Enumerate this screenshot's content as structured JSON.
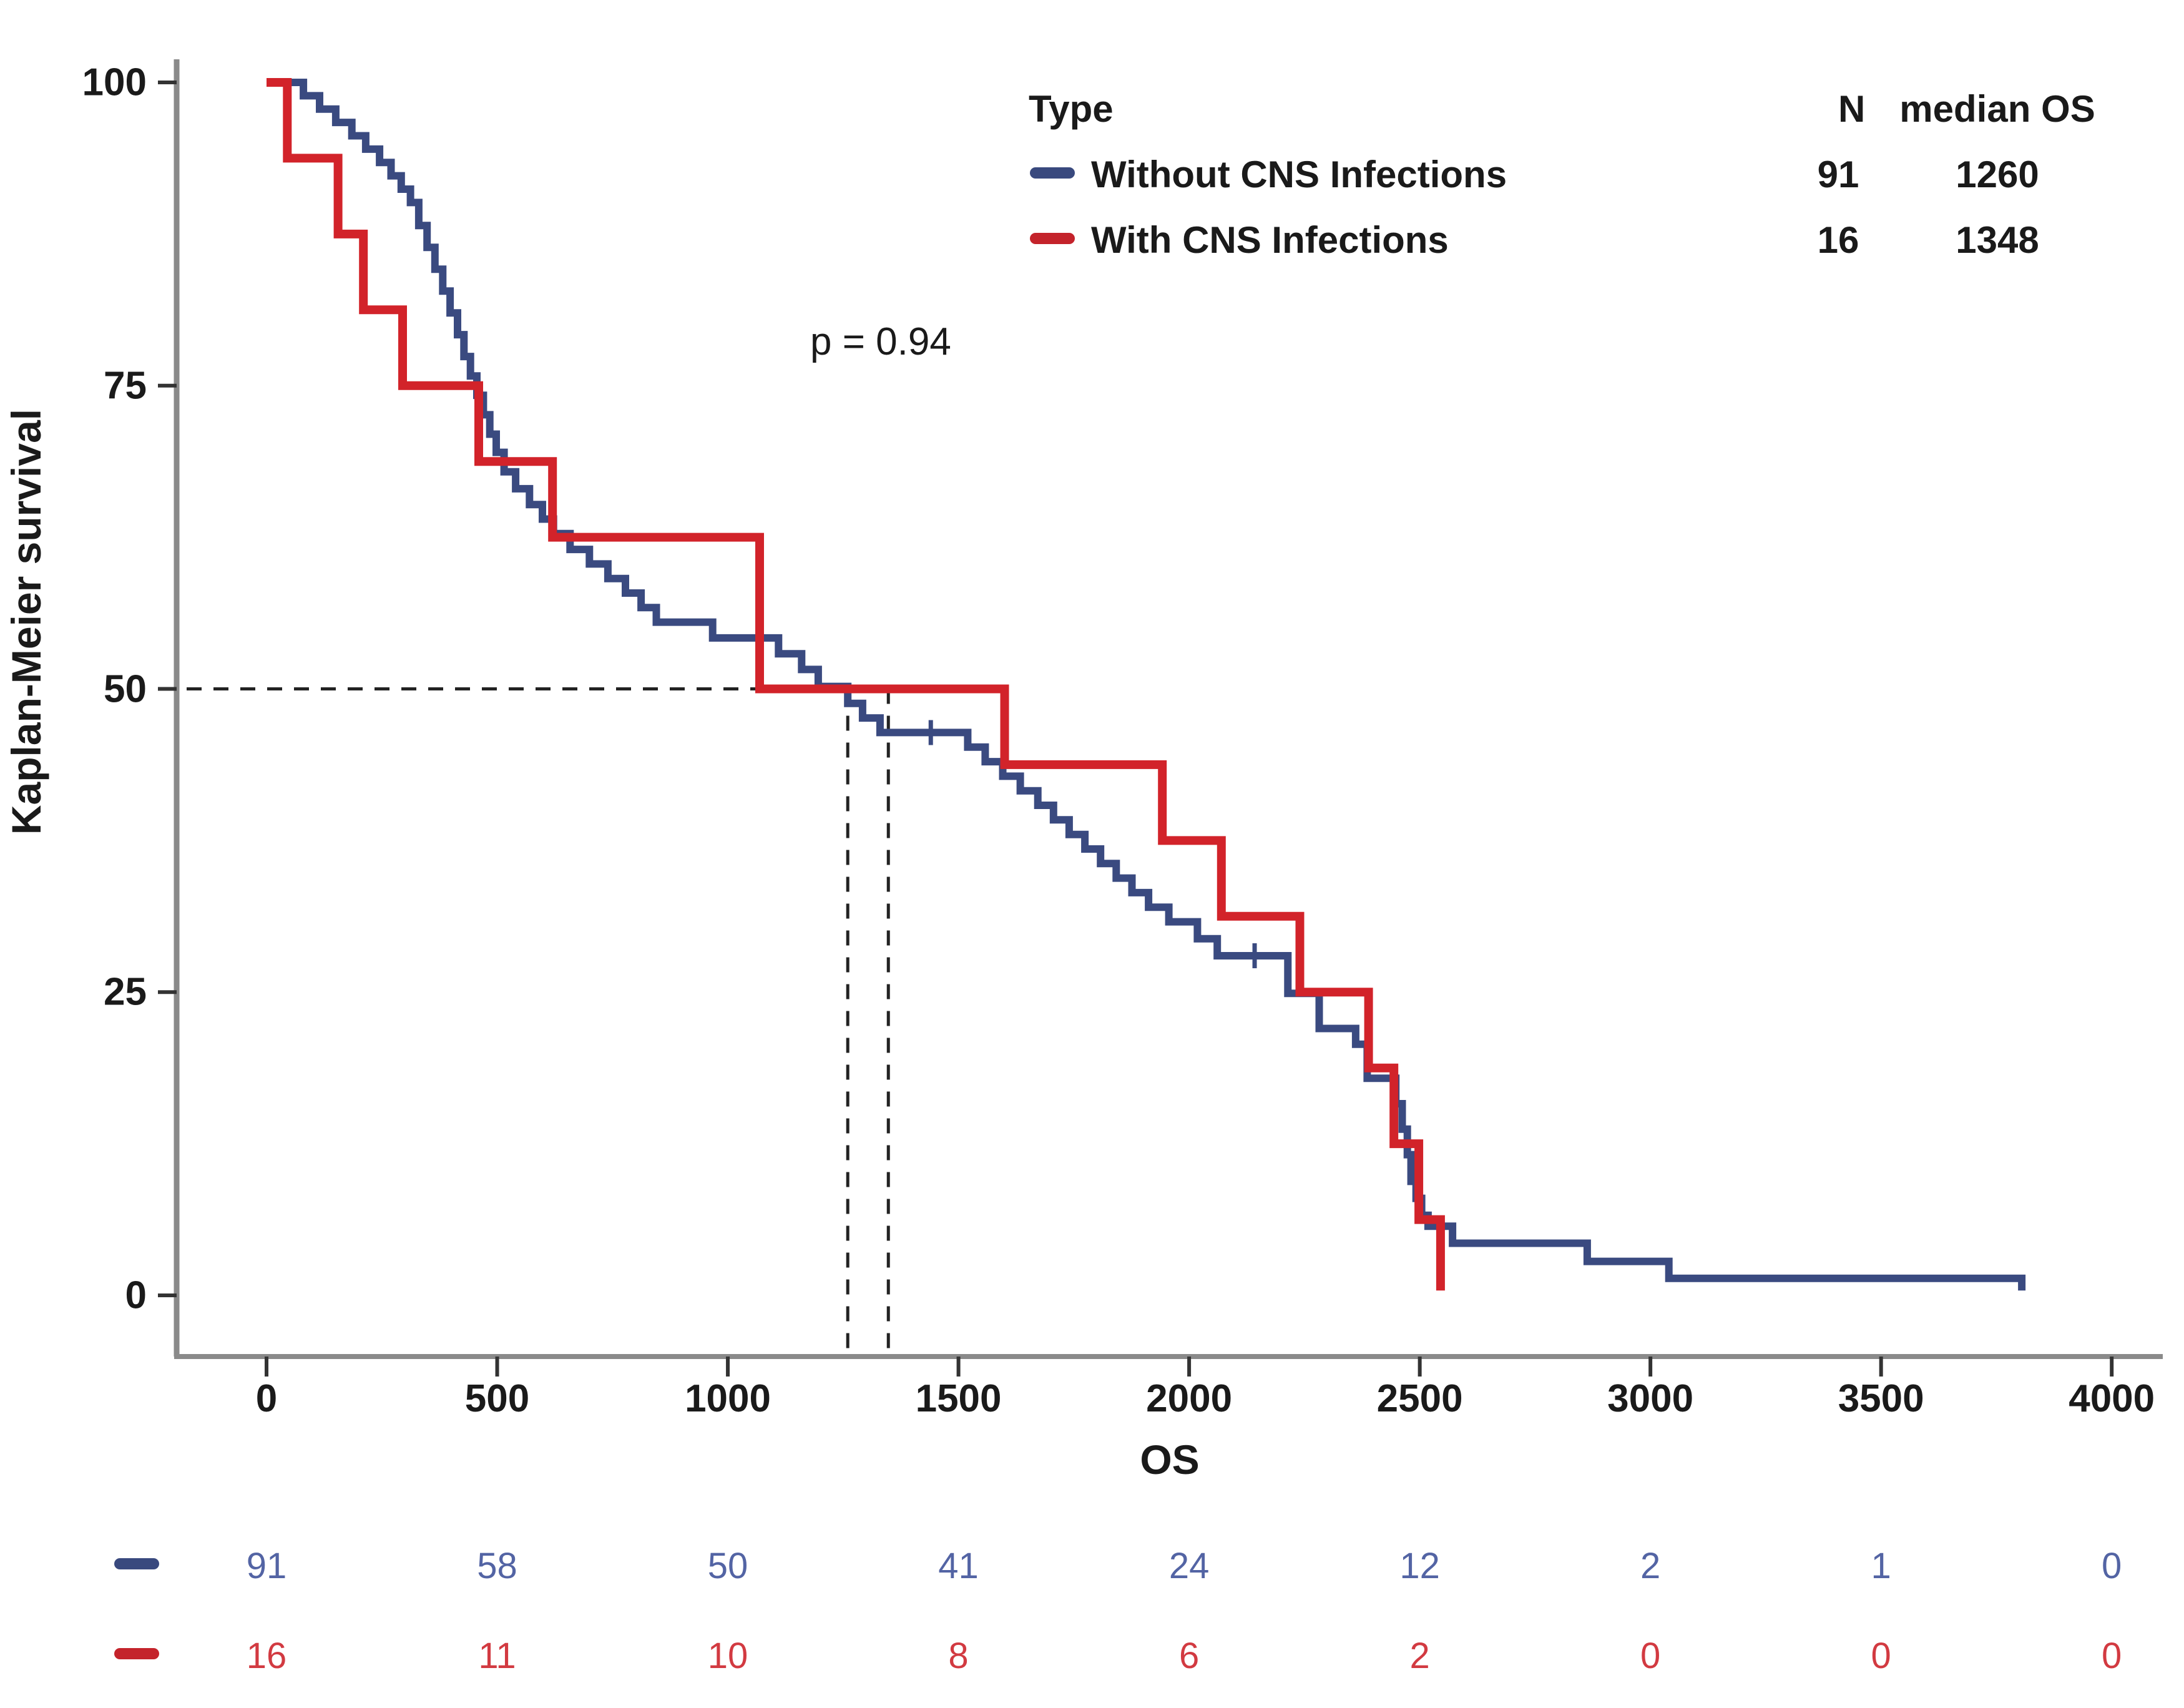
{
  "legend": {
    "title": "Type",
    "col_n_header": "N",
    "col_median_header": "median OS",
    "entries": [
      {
        "label": "Without CNS Infections",
        "n": "91",
        "median": "1260",
        "color_key": "blue"
      },
      {
        "label": "With CNS Infections",
        "n": "16",
        "median": "1348",
        "color_key": "red"
      }
    ]
  },
  "annotations": {
    "p_value": "p = 0.94"
  },
  "axes": {
    "y_title": "Kaplan-Meier survival",
    "x_title": "OS",
    "y_ticks": [
      "100",
      "75",
      "50",
      "25",
      "0"
    ],
    "y_tick_values": [
      100,
      75,
      50,
      25,
      0
    ],
    "x_ticks": [
      "0",
      "500",
      "1000",
      "1500",
      "2000",
      "2500",
      "3000",
      "3500",
      "4000"
    ],
    "x_tick_values": [
      0,
      500,
      1000,
      1500,
      2000,
      2500,
      3000,
      3500,
      4000
    ]
  },
  "risk_table": {
    "rows": [
      {
        "color_key": "blue",
        "counts": [
          "91",
          "58",
          "50",
          "41",
          "24",
          "12",
          "2",
          "1",
          "0"
        ]
      },
      {
        "color_key": "red",
        "counts": [
          "16",
          "11",
          "10",
          "8",
          "6",
          "2",
          "0",
          "0",
          "0"
        ]
      }
    ]
  },
  "colors": {
    "blue": "#3A4A80",
    "red": "#D2232A",
    "legend_blue": "#39497E",
    "legend_red": "#C4232B",
    "risk_text_blue": "#5364A4",
    "risk_text_red": "#D23A41",
    "axis_line": "#8a8a8a",
    "tick_mark": "#333333",
    "dash_line": "#222222",
    "text": "#1a1a1a"
  },
  "chart_data": {
    "type": "line",
    "subtype": "kaplan-meier-step",
    "title": "",
    "xlabel": "OS",
    "ylabel": "Kaplan-Meier survival",
    "xlim": [
      0,
      4000
    ],
    "ylim": [
      0,
      100
    ],
    "grid": false,
    "legend_position": "top-right",
    "p_value": 0.94,
    "series": [
      {
        "name": "Without CNS Infections",
        "n": 91,
        "median_os": 1260,
        "color_key": "blue",
        "start": [
          0,
          100
        ],
        "drops": [
          [
            80,
            98.9
          ],
          [
            115,
            97.8
          ],
          [
            150,
            96.7
          ],
          [
            185,
            95.6
          ],
          [
            215,
            94.5
          ],
          [
            245,
            93.4
          ],
          [
            270,
            92.3
          ],
          [
            292,
            91.2
          ],
          [
            312,
            90.1
          ],
          [
            330,
            88.2
          ],
          [
            348,
            86.4
          ],
          [
            365,
            84.6
          ],
          [
            382,
            82.8
          ],
          [
            398,
            81
          ],
          [
            414,
            79.2
          ],
          [
            428,
            77.4
          ],
          [
            442,
            75.8
          ],
          [
            456,
            74.2
          ],
          [
            470,
            72.6
          ],
          [
            484,
            71
          ],
          [
            498,
            69.5
          ],
          [
            515,
            67.9
          ],
          [
            540,
            66.5
          ],
          [
            570,
            65.2
          ],
          [
            598,
            64
          ],
          [
            622,
            62.8
          ],
          [
            658,
            61.5
          ],
          [
            700,
            60.3
          ],
          [
            740,
            59.1
          ],
          [
            778,
            57.9
          ],
          [
            812,
            56.7
          ],
          [
            845,
            55.5
          ],
          [
            967,
            54.2
          ],
          [
            1110,
            52.9
          ],
          [
            1160,
            51.6
          ],
          [
            1196,
            50.2
          ],
          [
            1260,
            48.8
          ],
          [
            1292,
            47.6
          ],
          [
            1330,
            46.4
          ],
          [
            1520,
            45.2
          ],
          [
            1558,
            44
          ],
          [
            1596,
            42.8
          ],
          [
            1634,
            41.6
          ],
          [
            1672,
            40.4
          ],
          [
            1706,
            39.2
          ],
          [
            1740,
            38
          ],
          [
            1774,
            36.8
          ],
          [
            1808,
            35.6
          ],
          [
            1842,
            34.4
          ],
          [
            1876,
            33.2
          ],
          [
            1912,
            32
          ],
          [
            1956,
            30.8
          ],
          [
            2018,
            29.4
          ],
          [
            2061,
            28
          ],
          [
            2214,
            24.9
          ],
          [
            2282,
            22
          ],
          [
            2361,
            20.7
          ],
          [
            2386,
            17.9
          ],
          [
            2448,
            15.8
          ],
          [
            2462,
            13.7
          ],
          [
            2473,
            11.6
          ],
          [
            2481,
            9.4
          ],
          [
            2492,
            8
          ],
          [
            2504,
            6.6
          ],
          [
            2518,
            5.7
          ],
          [
            2571,
            4.3
          ],
          [
            2863,
            2.8
          ],
          [
            3040,
            1.4
          ],
          [
            3805,
            0.4
          ]
        ],
        "end_time": 3805,
        "censor_marks": [
          [
            1440,
            46.4
          ],
          [
            2142,
            28
          ]
        ]
      },
      {
        "name": "With CNS Infections",
        "n": 16,
        "median_os": 1348,
        "color_key": "red",
        "start": [
          0,
          100
        ],
        "drops": [
          [
            45,
            93.75
          ],
          [
            155,
            87.5
          ],
          [
            210,
            81.25
          ],
          [
            295,
            75
          ],
          [
            460,
            68.75
          ],
          [
            620,
            62.5
          ],
          [
            1069,
            50
          ],
          [
            1600,
            43.75
          ],
          [
            1942,
            37.5
          ],
          [
            2070,
            31.25
          ],
          [
            2240,
            25
          ],
          [
            2389,
            18.75
          ],
          [
            2444,
            12.5
          ],
          [
            2498,
            6.25
          ],
          [
            2545,
            0.4
          ]
        ],
        "end_time": 2545,
        "censor_marks": []
      }
    ],
    "median_guides": {
      "survival_level": 50,
      "horizontal_from_x": 0,
      "vertical_lines_at": [
        1260,
        1348
      ]
    }
  }
}
